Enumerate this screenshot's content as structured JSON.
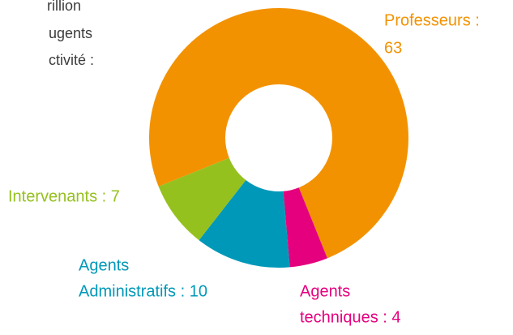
{
  "intro_lines": [
    "rillion",
    "ugents",
    "ctivité :"
  ],
  "chart_data": {
    "type": "donut",
    "values": [
      63,
      4,
      10,
      7
    ],
    "value_labels": [
      [
        "Professeurs :",
        "63"
      ],
      [
        "Agents",
        "techniques : 4"
      ],
      [
        "Agents",
        "Administratifs : 10"
      ],
      [
        "Intervenants : 7"
      ]
    ],
    "colors": [
      "#f39200",
      "#e5007e",
      "#0098b9",
      "#95c11f"
    ]
  }
}
